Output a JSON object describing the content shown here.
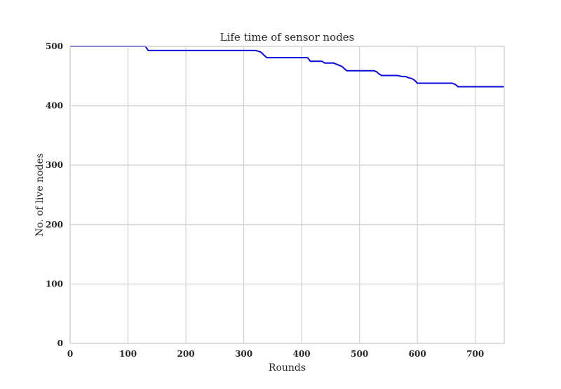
{
  "chart_data": {
    "type": "line",
    "title": "Life time of sensor nodes",
    "xlabel": "Rounds",
    "ylabel": "No. of live nodes",
    "xlim": [
      0,
      750
    ],
    "ylim": [
      0,
      500
    ],
    "xticks": [
      0,
      100,
      200,
      300,
      400,
      500,
      600,
      700
    ],
    "yticks": [
      0,
      100,
      200,
      300,
      400,
      500
    ],
    "grid": true,
    "colors": {
      "line": "#0a0ad8",
      "grid": "#d3d3d3",
      "frame": "#d3d3d3",
      "text": "#262626"
    },
    "series": [
      {
        "x": [
          0,
          130,
          135,
          320,
          325,
          330,
          335,
          340,
          410,
          412,
          415,
          435,
          438,
          440,
          455,
          460,
          465,
          470,
          473,
          478,
          525,
          530,
          533,
          538,
          565,
          570,
          575,
          580,
          585,
          590,
          595,
          600,
          660,
          665,
          668,
          670,
          750
        ],
        "y": [
          500,
          500,
          493,
          493,
          492,
          490,
          485,
          481,
          481,
          479,
          475,
          475,
          473,
          472,
          472,
          470,
          468,
          466,
          463,
          459,
          459,
          457,
          454,
          451,
          451,
          450,
          449,
          449,
          447,
          446,
          443,
          438,
          438,
          436,
          434,
          432,
          432
        ]
      }
    ]
  }
}
